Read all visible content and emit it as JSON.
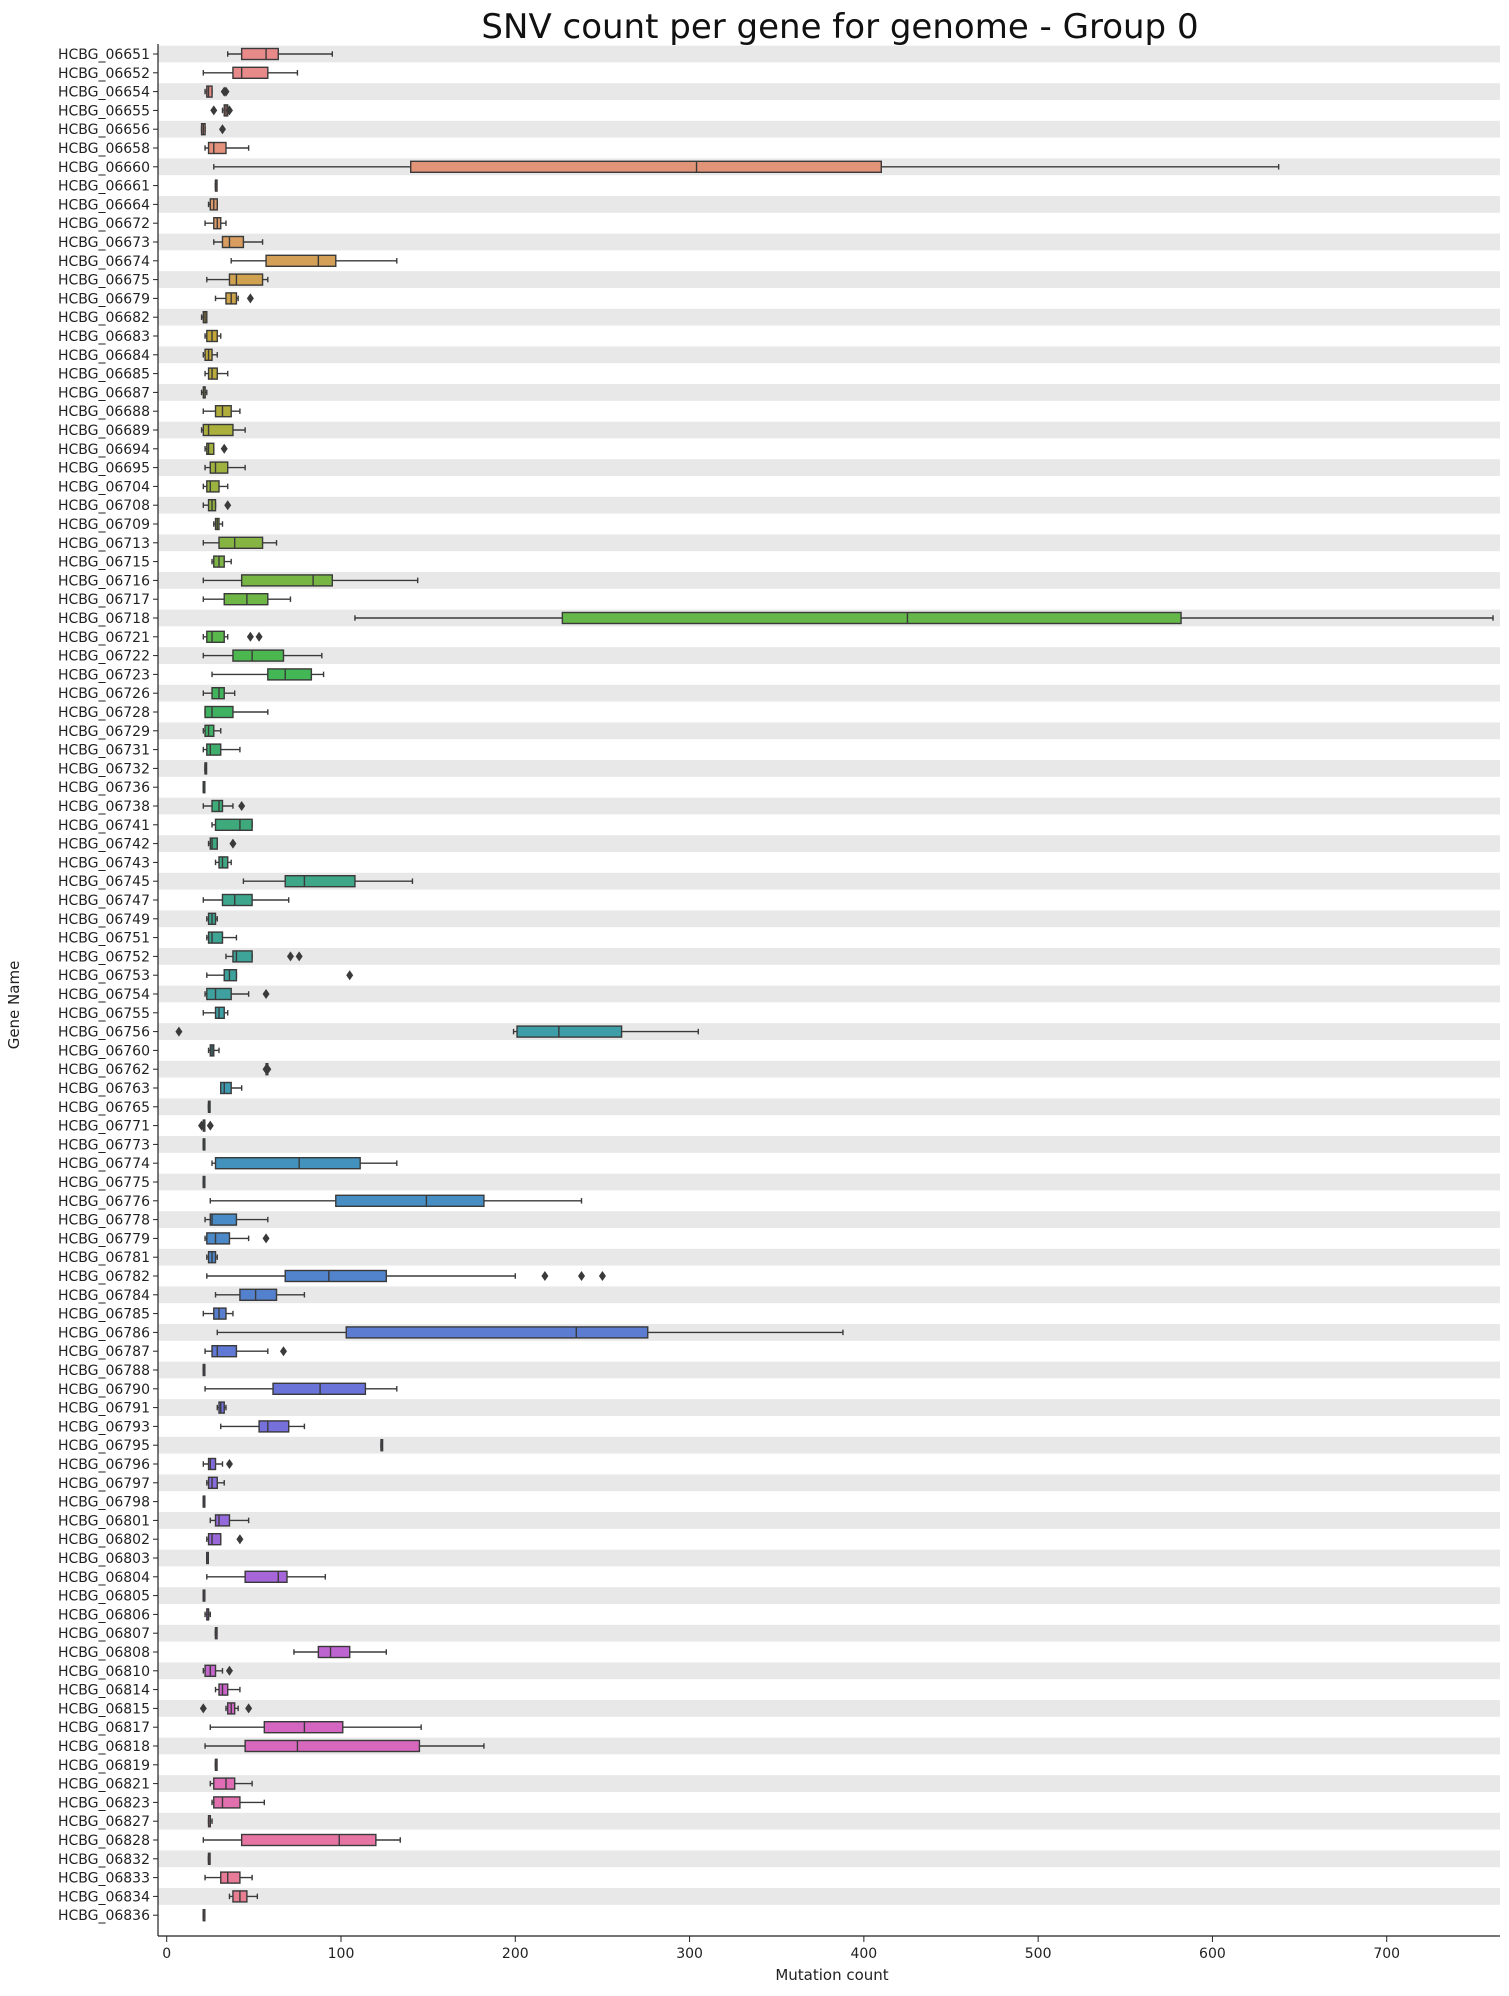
{
  "chart_data": {
    "type": "box",
    "orientation": "horizontal",
    "title": "SNV count per gene for genome - Group 0",
    "xlabel": "Mutation count",
    "ylabel": "Gene Name",
    "xlim": [
      -5,
      765
    ],
    "xticks": [
      0,
      100,
      200,
      300,
      400,
      500,
      600,
      700
    ],
    "grid": false,
    "row_band_color": "#e8e8e8",
    "genes": [
      {
        "name": "HCBG_06651",
        "color": "#e98a8a",
        "wl": 35,
        "q1": 43,
        "med": 57,
        "q3": 64,
        "wh": 95,
        "fliers": []
      },
      {
        "name": "HCBG_06652",
        "color": "#e98a8a",
        "wl": 21,
        "q1": 38,
        "med": 43,
        "q3": 58,
        "wh": 75,
        "fliers": []
      },
      {
        "name": "HCBG_06654",
        "color": "#e88d86",
        "wl": 22,
        "q1": 23,
        "med": 24,
        "q3": 26,
        "wh": 26,
        "fliers": [
          33,
          34
        ]
      },
      {
        "name": "HCBG_06655",
        "color": "#e88d86",
        "wl": 32,
        "q1": 33,
        "med": 34,
        "q3": 35,
        "wh": 36,
        "fliers": [
          27,
          36
        ]
      },
      {
        "name": "HCBG_06656",
        "color": "#e68f82",
        "wl": 20,
        "q1": 20,
        "med": 21,
        "q3": 22,
        "wh": 22,
        "fliers": [
          32
        ]
      },
      {
        "name": "HCBG_06658",
        "color": "#e5927c",
        "wl": 22,
        "q1": 24,
        "med": 27,
        "q3": 34,
        "wh": 47,
        "fliers": []
      },
      {
        "name": "HCBG_06660",
        "color": "#e29478",
        "wl": 27,
        "q1": 140,
        "med": 304,
        "q3": 410,
        "wh": 638,
        "fliers": []
      },
      {
        "name": "HCBG_06661",
        "color": "#e09672",
        "wl": 28,
        "q1": 28,
        "med": 28,
        "q3": 28,
        "wh": 28,
        "fliers": []
      },
      {
        "name": "HCBG_06664",
        "color": "#dd986c",
        "wl": 24,
        "q1": 25,
        "med": 27,
        "q3": 29,
        "wh": 29,
        "fliers": []
      },
      {
        "name": "HCBG_06672",
        "color": "#db9a66",
        "wl": 22,
        "q1": 27,
        "med": 29,
        "q3": 31,
        "wh": 34,
        "fliers": []
      },
      {
        "name": "HCBG_06673",
        "color": "#d89d5f",
        "wl": 27,
        "q1": 32,
        "med": 36,
        "q3": 44,
        "wh": 55,
        "fliers": []
      },
      {
        "name": "HCBG_06674",
        "color": "#d49f57",
        "wl": 37,
        "q1": 57,
        "med": 87,
        "q3": 97,
        "wh": 132,
        "fliers": []
      },
      {
        "name": "HCBG_06675",
        "color": "#d0a14f",
        "wl": 23,
        "q1": 36,
        "med": 40,
        "q3": 55,
        "wh": 58,
        "fliers": []
      },
      {
        "name": "HCBG_06679",
        "color": "#cca348",
        "wl": 28,
        "q1": 34,
        "med": 37,
        "q3": 40,
        "wh": 41,
        "fliers": [
          48
        ]
      },
      {
        "name": "HCBG_06682",
        "color": "#c8a540",
        "wl": 20,
        "q1": 21,
        "med": 22,
        "q3": 23,
        "wh": 23,
        "fliers": []
      },
      {
        "name": "HCBG_06683",
        "color": "#c3a73b",
        "wl": 22,
        "q1": 23,
        "med": 26,
        "q3": 29,
        "wh": 31,
        "fliers": []
      },
      {
        "name": "HCBG_06684",
        "color": "#bea93a",
        "wl": 21,
        "q1": 22,
        "med": 24,
        "q3": 26,
        "wh": 29,
        "fliers": []
      },
      {
        "name": "HCBG_06685",
        "color": "#baab3b",
        "wl": 22,
        "q1": 24,
        "med": 26,
        "q3": 29,
        "wh": 35,
        "fliers": []
      },
      {
        "name": "HCBG_06687",
        "color": "#b5ac3b",
        "wl": 20,
        "q1": 21,
        "med": 22,
        "q3": 22,
        "wh": 23,
        "fliers": []
      },
      {
        "name": "HCBG_06688",
        "color": "#b0ad3c",
        "wl": 21,
        "q1": 28,
        "med": 32,
        "q3": 37,
        "wh": 42,
        "fliers": []
      },
      {
        "name": "HCBG_06689",
        "color": "#aaaf3d",
        "wl": 20,
        "q1": 21,
        "med": 24,
        "q3": 38,
        "wh": 45,
        "fliers": []
      },
      {
        "name": "HCBG_06694",
        "color": "#a4b03e",
        "wl": 22,
        "q1": 23,
        "med": 24,
        "q3": 27,
        "wh": 27,
        "fliers": [
          33
        ]
      },
      {
        "name": "HCBG_06695",
        "color": "#9fb13f",
        "wl": 22,
        "q1": 25,
        "med": 28,
        "q3": 35,
        "wh": 45,
        "fliers": []
      },
      {
        "name": "HCBG_06704",
        "color": "#99b240",
        "wl": 21,
        "q1": 23,
        "med": 25,
        "q3": 30,
        "wh": 35,
        "fliers": []
      },
      {
        "name": "HCBG_06708",
        "color": "#93b341",
        "wl": 21,
        "q1": 24,
        "med": 26,
        "q3": 28,
        "wh": 28,
        "fliers": [
          35
        ]
      },
      {
        "name": "HCBG_06709",
        "color": "#8db442",
        "wl": 27,
        "q1": 28,
        "med": 29,
        "q3": 30,
        "wh": 32,
        "fliers": []
      },
      {
        "name": "HCBG_06713",
        "color": "#86b443",
        "wl": 21,
        "q1": 30,
        "med": 39,
        "q3": 55,
        "wh": 63,
        "fliers": []
      },
      {
        "name": "HCBG_06715",
        "color": "#7fb544",
        "wl": 26,
        "q1": 27,
        "med": 30,
        "q3": 33,
        "wh": 37,
        "fliers": []
      },
      {
        "name": "HCBG_06716",
        "color": "#77b645",
        "wl": 21,
        "q1": 43,
        "med": 84,
        "q3": 95,
        "wh": 144,
        "fliers": []
      },
      {
        "name": "HCBG_06717",
        "color": "#6eb646",
        "wl": 21,
        "q1": 33,
        "med": 46,
        "q3": 58,
        "wh": 71,
        "fliers": []
      },
      {
        "name": "HCBG_06718",
        "color": "#64b748",
        "wl": 108,
        "q1": 227,
        "med": 425,
        "q3": 582,
        "wh": 761,
        "fliers": []
      },
      {
        "name": "HCBG_06721",
        "color": "#59b74b",
        "wl": 21,
        "q1": 23,
        "med": 26,
        "q3": 33,
        "wh": 35,
        "fliers": [
          48,
          53
        ]
      },
      {
        "name": "HCBG_06722",
        "color": "#4db74f",
        "wl": 21,
        "q1": 38,
        "med": 49,
        "q3": 67,
        "wh": 89,
        "fliers": []
      },
      {
        "name": "HCBG_06723",
        "color": "#43b655",
        "wl": 26,
        "q1": 58,
        "med": 68,
        "q3": 83,
        "wh": 90,
        "fliers": []
      },
      {
        "name": "HCBG_06726",
        "color": "#40b45c",
        "wl": 21,
        "q1": 26,
        "med": 30,
        "q3": 33,
        "wh": 39,
        "fliers": []
      },
      {
        "name": "HCBG_06728",
        "color": "#3fb262",
        "wl": 22,
        "q1": 22,
        "med": 26,
        "q3": 38,
        "wh": 58,
        "fliers": []
      },
      {
        "name": "HCBG_06729",
        "color": "#3fb067",
        "wl": 21,
        "q1": 22,
        "med": 24,
        "q3": 27,
        "wh": 31,
        "fliers": []
      },
      {
        "name": "HCBG_06731",
        "color": "#3fae6c",
        "wl": 21,
        "q1": 23,
        "med": 25,
        "q3": 31,
        "wh": 42,
        "fliers": []
      },
      {
        "name": "HCBG_06732",
        "color": "#3fad70",
        "wl": 22,
        "q1": 22,
        "med": 22,
        "q3": 22,
        "wh": 22,
        "fliers": []
      },
      {
        "name": "HCBG_06736",
        "color": "#3fac74",
        "wl": 21,
        "q1": 21,
        "med": 21,
        "q3": 21,
        "wh": 21,
        "fliers": []
      },
      {
        "name": "HCBG_06738",
        "color": "#3eab78",
        "wl": 21,
        "q1": 26,
        "med": 30,
        "q3": 32,
        "wh": 38,
        "fliers": [
          43
        ]
      },
      {
        "name": "HCBG_06741",
        "color": "#3eaa7c",
        "wl": 26,
        "q1": 28,
        "med": 42,
        "q3": 49,
        "wh": 49,
        "fliers": []
      },
      {
        "name": "HCBG_06742",
        "color": "#3ea980",
        "wl": 24,
        "q1": 25,
        "med": 26,
        "q3": 29,
        "wh": 29,
        "fliers": [
          38
        ]
      },
      {
        "name": "HCBG_06743",
        "color": "#3ea884",
        "wl": 28,
        "q1": 30,
        "med": 32,
        "q3": 35,
        "wh": 37,
        "fliers": []
      },
      {
        "name": "HCBG_06745",
        "color": "#3ea788",
        "wl": 44,
        "q1": 68,
        "med": 79,
        "q3": 108,
        "wh": 141,
        "fliers": []
      },
      {
        "name": "HCBG_06747",
        "color": "#3ea68c",
        "wl": 21,
        "q1": 32,
        "med": 39,
        "q3": 49,
        "wh": 70,
        "fliers": []
      },
      {
        "name": "HCBG_06749",
        "color": "#3ea590",
        "wl": 23,
        "q1": 24,
        "med": 26,
        "q3": 28,
        "wh": 29,
        "fliers": []
      },
      {
        "name": "HCBG_06751",
        "color": "#3ea494",
        "wl": 23,
        "q1": 24,
        "med": 26,
        "q3": 32,
        "wh": 40,
        "fliers": []
      },
      {
        "name": "HCBG_06752",
        "color": "#3ea398",
        "wl": 34,
        "q1": 38,
        "med": 40,
        "q3": 49,
        "wh": 49,
        "fliers": [
          71,
          76
        ]
      },
      {
        "name": "HCBG_06753",
        "color": "#3ea29c",
        "wl": 23,
        "q1": 33,
        "med": 36,
        "q3": 40,
        "wh": 40,
        "fliers": [
          105
        ]
      },
      {
        "name": "HCBG_06754",
        "color": "#3ea1a0",
        "wl": 22,
        "q1": 23,
        "med": 28,
        "q3": 37,
        "wh": 47,
        "fliers": [
          57
        ]
      },
      {
        "name": "HCBG_06755",
        "color": "#3ea0a4",
        "wl": 21,
        "q1": 28,
        "med": 30,
        "q3": 33,
        "wh": 35,
        "fliers": []
      },
      {
        "name": "HCBG_06756",
        "color": "#3e9ea8",
        "wl": 199,
        "q1": 201,
        "med": 225,
        "q3": 261,
        "wh": 305,
        "fliers": [
          7
        ]
      },
      {
        "name": "HCBG_06760",
        "color": "#3e9dab",
        "wl": 24,
        "q1": 25,
        "med": 26,
        "q3": 27,
        "wh": 30,
        "fliers": []
      },
      {
        "name": "HCBG_06762",
        "color": "#3f9bae",
        "wl": 57,
        "q1": 57,
        "med": 58,
        "q3": 58,
        "wh": 58,
        "fliers": [
          57,
          58
        ]
      },
      {
        "name": "HCBG_06763",
        "color": "#3f9ab1",
        "wl": 31,
        "q1": 31,
        "med": 33,
        "q3": 37,
        "wh": 43,
        "fliers": []
      },
      {
        "name": "HCBG_06765",
        "color": "#4098b5",
        "wl": 24,
        "q1": 24,
        "med": 24,
        "q3": 24,
        "wh": 24,
        "fliers": []
      },
      {
        "name": "HCBG_06771",
        "color": "#4196b8",
        "wl": 21,
        "q1": 21,
        "med": 21,
        "q3": 21,
        "wh": 21,
        "fliers": [
          20,
          25
        ]
      },
      {
        "name": "HCBG_06773",
        "color": "#4294bb",
        "wl": 21,
        "q1": 21,
        "med": 21,
        "q3": 21,
        "wh": 21,
        "fliers": []
      },
      {
        "name": "HCBG_06774",
        "color": "#4392be",
        "wl": 26,
        "q1": 28,
        "med": 76,
        "q3": 111,
        "wh": 132,
        "fliers": []
      },
      {
        "name": "HCBG_06775",
        "color": "#4590c1",
        "wl": 21,
        "q1": 21,
        "med": 21,
        "q3": 21,
        "wh": 21,
        "fliers": []
      },
      {
        "name": "HCBG_06776",
        "color": "#478ec4",
        "wl": 25,
        "q1": 97,
        "med": 149,
        "q3": 182,
        "wh": 238,
        "fliers": []
      },
      {
        "name": "HCBG_06778",
        "color": "#498bc6",
        "wl": 22,
        "q1": 25,
        "med": 26,
        "q3": 40,
        "wh": 58,
        "fliers": []
      },
      {
        "name": "HCBG_06779",
        "color": "#4b89c8",
        "wl": 22,
        "q1": 23,
        "med": 28,
        "q3": 36,
        "wh": 47,
        "fliers": [
          57
        ]
      },
      {
        "name": "HCBG_06781",
        "color": "#4e86ca",
        "wl": 23,
        "q1": 24,
        "med": 26,
        "q3": 28,
        "wh": 29,
        "fliers": []
      },
      {
        "name": "HCBG_06782",
        "color": "#5184cc",
        "wl": 23,
        "q1": 68,
        "med": 93,
        "q3": 126,
        "wh": 200,
        "fliers": [
          217,
          238,
          250
        ]
      },
      {
        "name": "HCBG_06784",
        "color": "#5481ce",
        "wl": 28,
        "q1": 42,
        "med": 51,
        "q3": 63,
        "wh": 79,
        "fliers": []
      },
      {
        "name": "HCBG_06785",
        "color": "#587ed0",
        "wl": 21,
        "q1": 27,
        "med": 30,
        "q3": 34,
        "wh": 38,
        "fliers": []
      },
      {
        "name": "HCBG_06786",
        "color": "#5c7cd2",
        "wl": 29,
        "q1": 103,
        "med": 235,
        "q3": 276,
        "wh": 388,
        "fliers": []
      },
      {
        "name": "HCBG_06787",
        "color": "#6079d4",
        "wl": 22,
        "q1": 26,
        "med": 29,
        "q3": 40,
        "wh": 58,
        "fliers": [
          67
        ]
      },
      {
        "name": "HCBG_06788",
        "color": "#6576d6",
        "wl": 21,
        "q1": 21,
        "med": 21,
        "q3": 21,
        "wh": 21,
        "fliers": []
      },
      {
        "name": "HCBG_06790",
        "color": "#6a74d8",
        "wl": 22,
        "q1": 61,
        "med": 88,
        "q3": 114,
        "wh": 132,
        "fliers": []
      },
      {
        "name": "HCBG_06791",
        "color": "#6f72d9",
        "wl": 29,
        "q1": 30,
        "med": 31,
        "q3": 33,
        "wh": 34,
        "fliers": []
      },
      {
        "name": "HCBG_06793",
        "color": "#7570da",
        "wl": 31,
        "q1": 53,
        "med": 58,
        "q3": 70,
        "wh": 79,
        "fliers": []
      },
      {
        "name": "HCBG_06795",
        "color": "#7b6edb",
        "wl": 123,
        "q1": 123,
        "med": 123,
        "q3": 123,
        "wh": 123,
        "fliers": []
      },
      {
        "name": "HCBG_06796",
        "color": "#826cdc",
        "wl": 21,
        "q1": 24,
        "med": 25,
        "q3": 28,
        "wh": 32,
        "fliers": [
          36
        ]
      },
      {
        "name": "HCBG_06797",
        "color": "#886bdc",
        "wl": 23,
        "q1": 24,
        "med": 26,
        "q3": 29,
        "wh": 33,
        "fliers": []
      },
      {
        "name": "HCBG_06798",
        "color": "#8e6adc",
        "wl": 21,
        "q1": 21,
        "med": 21,
        "q3": 21,
        "wh": 21,
        "fliers": []
      },
      {
        "name": "HCBG_06801",
        "color": "#9469dc",
        "wl": 25,
        "q1": 28,
        "med": 30,
        "q3": 36,
        "wh": 47,
        "fliers": []
      },
      {
        "name": "HCBG_06802",
        "color": "#9a68db",
        "wl": 23,
        "q1": 24,
        "med": 26,
        "q3": 31,
        "wh": 31,
        "fliers": [
          42
        ]
      },
      {
        "name": "HCBG_06803",
        "color": "#a067da",
        "wl": 23,
        "q1": 23,
        "med": 23,
        "q3": 23,
        "wh": 23,
        "fliers": []
      },
      {
        "name": "HCBG_06804",
        "color": "#a666d9",
        "wl": 23,
        "q1": 45,
        "med": 64,
        "q3": 69,
        "wh": 91,
        "fliers": []
      },
      {
        "name": "HCBG_06805",
        "color": "#ac65d7",
        "wl": 21,
        "q1": 21,
        "med": 21,
        "q3": 21,
        "wh": 21,
        "fliers": []
      },
      {
        "name": "HCBG_06806",
        "color": "#b265d5",
        "wl": 22,
        "q1": 23,
        "med": 24,
        "q3": 24,
        "wh": 25,
        "fliers": []
      },
      {
        "name": "HCBG_06807",
        "color": "#b864d3",
        "wl": 28,
        "q1": 28,
        "med": 28,
        "q3": 28,
        "wh": 28,
        "fliers": []
      },
      {
        "name": "HCBG_06808",
        "color": "#be64d0",
        "wl": 73,
        "q1": 87,
        "med": 94,
        "q3": 105,
        "wh": 126,
        "fliers": []
      },
      {
        "name": "HCBG_06810",
        "color": "#c464cd",
        "wl": 21,
        "q1": 22,
        "med": 25,
        "q3": 28,
        "wh": 32,
        "fliers": [
          36
        ]
      },
      {
        "name": "HCBG_06814",
        "color": "#ca64ca",
        "wl": 28,
        "q1": 30,
        "med": 32,
        "q3": 35,
        "wh": 42,
        "fliers": []
      },
      {
        "name": "HCBG_06815",
        "color": "#cf65c6",
        "wl": 34,
        "q1": 35,
        "med": 37,
        "q3": 39,
        "wh": 41,
        "fliers": [
          21,
          47
        ]
      },
      {
        "name": "HCBG_06817",
        "color": "#d466c2",
        "wl": 25,
        "q1": 56,
        "med": 79,
        "q3": 101,
        "wh": 146,
        "fliers": []
      },
      {
        "name": "HCBG_06818",
        "color": "#d868be",
        "wl": 22,
        "q1": 45,
        "med": 75,
        "q3": 145,
        "wh": 182,
        "fliers": []
      },
      {
        "name": "HCBG_06819",
        "color": "#dc6ab9",
        "wl": 28,
        "q1": 28,
        "med": 28,
        "q3": 28,
        "wh": 28,
        "fliers": []
      },
      {
        "name": "HCBG_06821",
        "color": "#df6cb4",
        "wl": 25,
        "q1": 27,
        "med": 34,
        "q3": 39,
        "wh": 49,
        "fliers": []
      },
      {
        "name": "HCBG_06823",
        "color": "#e26fae",
        "wl": 26,
        "q1": 27,
        "med": 32,
        "q3": 42,
        "wh": 56,
        "fliers": []
      },
      {
        "name": "HCBG_06827",
        "color": "#e472a8",
        "wl": 24,
        "q1": 24,
        "med": 25,
        "q3": 25,
        "wh": 26,
        "fliers": []
      },
      {
        "name": "HCBG_06828",
        "color": "#e675a3",
        "wl": 21,
        "q1": 43,
        "med": 99,
        "q3": 120,
        "wh": 134,
        "fliers": []
      },
      {
        "name": "HCBG_06832",
        "color": "#e7789d",
        "wl": 24,
        "q1": 24,
        "med": 24,
        "q3": 24,
        "wh": 24,
        "fliers": []
      },
      {
        "name": "HCBG_06833",
        "color": "#e87b98",
        "wl": 22,
        "q1": 31,
        "med": 35,
        "q3": 42,
        "wh": 49,
        "fliers": []
      },
      {
        "name": "HCBG_06834",
        "color": "#e97e93",
        "wl": 36,
        "q1": 38,
        "med": 42,
        "q3": 46,
        "wh": 52,
        "fliers": []
      },
      {
        "name": "HCBG_06836",
        "color": "#e9818f",
        "wl": 21,
        "q1": 21,
        "med": 21,
        "q3": 21,
        "wh": 21,
        "fliers": []
      }
    ]
  }
}
